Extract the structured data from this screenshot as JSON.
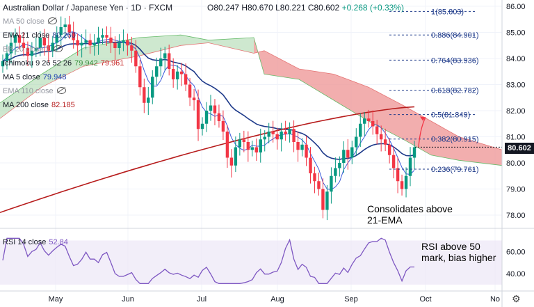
{
  "header": {
    "title": "Australian Dollar / Japanese Yen · 1D · FXCM",
    "ohlc": {
      "o": "O80.247",
      "h": "H80.670",
      "l": "L80.221",
      "c": "C80.602",
      "chg": "+0.268 (+0.33%)"
    }
  },
  "legend": [
    {
      "name": "MA 50 close",
      "value": "",
      "hidden": true,
      "color": "#2962ff"
    },
    {
      "name": "EMA 21 close",
      "value": "80.260",
      "hidden": false,
      "color": "#1e3a8a"
    },
    {
      "name": "BB 20 close 2",
      "value": "",
      "hidden": true,
      "color": "#2196f3"
    },
    {
      "name": "Ichimoku 9 26 52 26",
      "value": "79.942",
      "value2": "79.961",
      "hidden": false,
      "color": "#388e3c",
      "color2": "#c62828"
    },
    {
      "name": "MA 5 close",
      "value": "79.948",
      "hidden": false,
      "color": "#1e40af"
    },
    {
      "name": "EMA 110 close",
      "value": "",
      "hidden": true,
      "color": "#9598a1"
    },
    {
      "name": "MA 200 close",
      "value": "82.185",
      "hidden": false,
      "color": "#b71c1c"
    }
  ],
  "rsi_legend": {
    "name": "RSI 14 close",
    "value": "52.84"
  },
  "last_price": "80.602",
  "fib_levels": [
    {
      "label": "1(85.803)",
      "value": 85.803
    },
    {
      "label": "0.886(84.901)",
      "value": 84.901
    },
    {
      "label": "0.764(83.936)",
      "value": 83.936
    },
    {
      "label": "0.618(82.782)",
      "value": 82.782
    },
    {
      "label": "0.5(81.849)",
      "value": 81.849
    },
    {
      "label": "0.382(80.915)",
      "value": 80.915
    },
    {
      "label": "0.236(79.761)",
      "value": 79.761
    }
  ],
  "annotations": {
    "price_note": "Consolidates above\n21-EMA",
    "price_note_l1": "Consolidates above",
    "price_note_l2": "21-EMA",
    "rsi_note_l1": "RSI above 50",
    "rsi_note_l2": "mark, bias higher"
  },
  "colors": {
    "up": "#089981",
    "down": "#f23645",
    "cloud_bull": "#a5d6a7",
    "cloud_bear": "#ef9a9a",
    "ma200": "#b71c1c",
    "ema21": "#1e3a8a",
    "rsi": "#7e57c2",
    "fib": "#1e3a8a"
  },
  "chart_data": {
    "type": "candlestick",
    "symbol": "AUDJPY",
    "timeframe": "1D",
    "y_axis": {
      "ticks": [
        86.0,
        85.0,
        84.0,
        83.0,
        82.0,
        81.0,
        80.0,
        79.0,
        78.0
      ],
      "range": [
        77.7,
        86.3
      ]
    },
    "x_axis": {
      "labels": [
        "May",
        "Jun",
        "Jul",
        "Aug",
        "Sep",
        "Oct",
        "No"
      ]
    },
    "rsi_axis": {
      "ticks": [
        60.0,
        40.0
      ],
      "range": [
        28,
        76
      ]
    },
    "close_series": [
      83.9,
      84.2,
      84.6,
      84.9,
      84.6,
      84.4,
      84.1,
      84.3,
      84.4,
      84.8,
      84.5,
      84.3,
      84.6,
      84.9,
      85.2,
      85.3,
      85.0,
      84.7,
      84.5,
      84.6,
      84.7,
      84.5,
      84.6,
      84.8,
      84.9,
      84.8,
      84.6,
      84.4,
      84.6,
      84.7,
      84.5,
      84.3,
      83.7,
      82.9,
      82.3,
      82.5,
      83.3,
      83.7,
      84.0,
      84.2,
      83.6,
      83.2,
      83.5,
      83.4,
      83.0,
      82.5,
      82.4,
      81.3,
      81.5,
      82.0,
      82.2,
      81.9,
      81.6,
      81.2,
      80.2,
      79.9,
      80.6,
      80.9,
      80.8,
      80.5,
      80.6,
      80.4,
      80.9,
      81.0,
      81.2,
      81.1,
      80.9,
      81.2,
      81.1,
      81.3,
      80.8,
      80.5,
      80.7,
      80.2,
      79.6,
      79.3,
      79.0,
      78.2,
      78.9,
      79.5,
      79.8,
      80.0,
      80.5,
      80.2,
      80.6,
      81.0,
      81.5,
      81.7,
      81.6,
      81.4,
      81.1,
      80.9,
      80.7,
      80.3,
      79.8,
      79.3,
      79.0,
      79.5,
      80.2,
      80.6
    ],
    "series": [
      {
        "name": "EMA 21 close",
        "last": 80.26
      },
      {
        "name": "MA 5 close",
        "last": 79.948
      },
      {
        "name": "MA 200 close",
        "last": 82.185
      },
      {
        "name": "Ichimoku 9 26 52 26",
        "last": 79.942,
        "last2": 79.961
      },
      {
        "name": "RSI 14 close",
        "last": 52.84
      }
    ]
  }
}
